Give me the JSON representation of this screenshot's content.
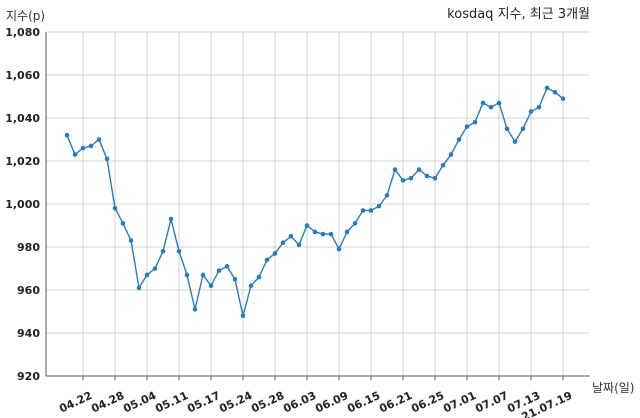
{
  "chart_data": {
    "type": "line",
    "title": "kosdaq 지수, 최근 3개월",
    "xlabel": "날짜(일)",
    "ylabel": "지수(p)",
    "ylim": [
      920,
      1080
    ],
    "yticks": [
      920,
      940,
      960,
      980,
      1000,
      1020,
      1040,
      1060,
      1080
    ],
    "ytick_labels": [
      "920",
      "940",
      "960",
      "980",
      "1,000",
      "1,020",
      "1,040",
      "1,060",
      "1,080"
    ],
    "xtick_labels": [
      "04.22",
      "04.28",
      "05.04",
      "05.11",
      "05.17",
      "05.24",
      "05.28",
      "06.03",
      "06.09",
      "06.15",
      "06.21",
      "06.25",
      "07.01",
      "07.07",
      "07.13",
      "21.07.19"
    ],
    "xtick_indices": [
      2,
      6,
      10,
      14,
      18,
      22,
      26,
      30,
      34,
      38,
      42,
      46,
      50,
      54,
      58,
      62
    ],
    "grid": true,
    "series": [
      {
        "color": "#2b7bb9",
        "values": [
          1032,
          1023,
          1026,
          1027,
          1030,
          1021,
          998,
          991,
          983,
          961,
          967,
          970,
          978,
          993,
          978,
          967,
          951,
          967,
          962,
          969,
          971,
          965,
          948,
          962,
          966,
          974,
          977,
          982,
          985,
          981,
          990,
          987,
          986,
          986,
          979,
          987,
          991,
          997,
          997,
          999,
          1004,
          1016,
          1011,
          1012,
          1016,
          1013,
          1012,
          1018,
          1023,
          1030,
          1036,
          1038,
          1047,
          1045,
          1047,
          1035,
          1029,
          1035,
          1043,
          1045,
          1054,
          1052,
          1049
        ]
      }
    ]
  }
}
